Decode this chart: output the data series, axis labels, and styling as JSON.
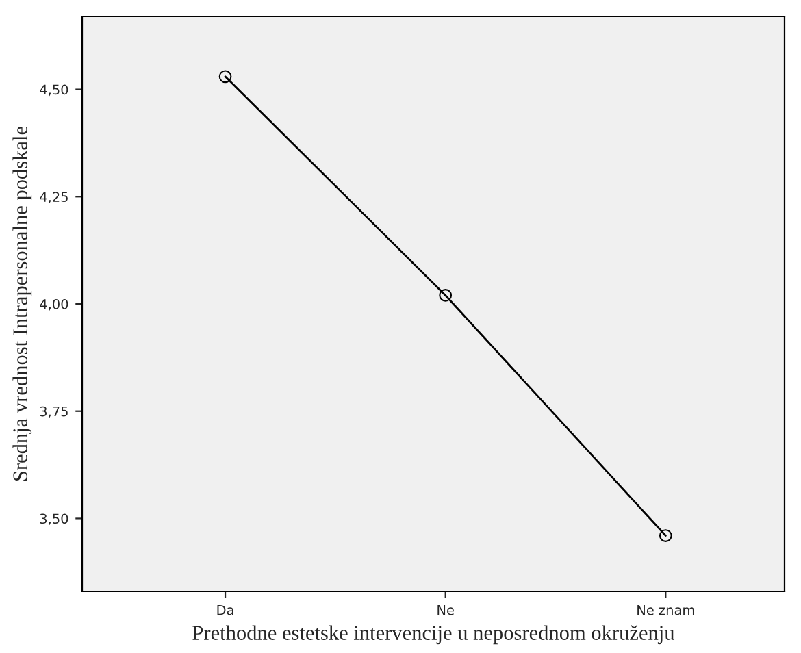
{
  "chart_data": {
    "type": "line",
    "xlabel": "Prethodne estetske intervencije u neposrednom okruženju",
    "ylabel": "Srednja vrednost Intrapersonalne podskale",
    "categories": [
      "Da",
      "Ne",
      "Ne znam"
    ],
    "series": [
      {
        "color": "#000000",
        "values": [
          4.53,
          4.02,
          3.46
        ]
      }
    ],
    "ylim": [
      3.33,
      4.67
    ],
    "yticks": [
      {
        "value": 3.5,
        "label": "3,50"
      },
      {
        "value": 3.75,
        "label": "3,75"
      },
      {
        "value": 4.0,
        "label": "4,00"
      },
      {
        "value": 4.25,
        "label": "4,25"
      },
      {
        "value": 4.5,
        "label": "4,50"
      }
    ],
    "marker": "circle",
    "line_style": "solid",
    "grid": false,
    "legend": false
  }
}
